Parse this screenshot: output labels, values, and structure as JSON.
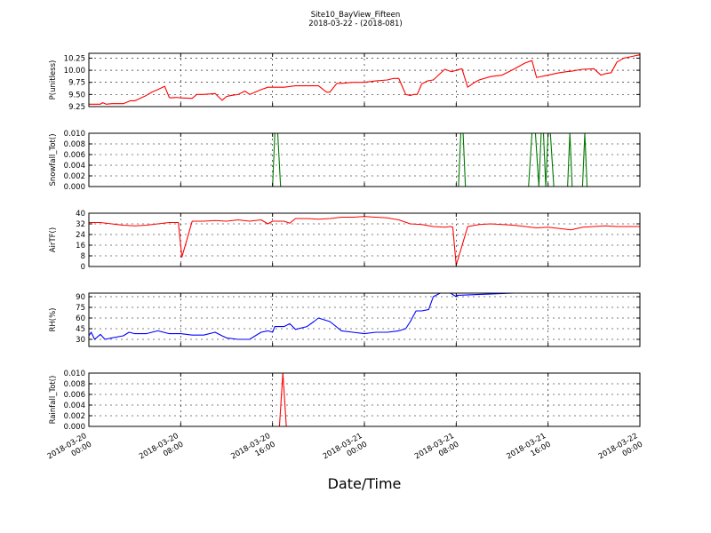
{
  "figure": {
    "title_lines": [
      "Site10_BayView_Fifteen",
      "2018-03-22 - (2018-081)"
    ],
    "xlabel": "Date/Time",
    "x_ticks": [
      {
        "t": 0,
        "line1": "2018-03-20",
        "line2": "00:00"
      },
      {
        "t": 8,
        "line1": "2018-03-20",
        "line2": "08:00"
      },
      {
        "t": 16,
        "line1": "2018-03-20",
        "line2": "16:00"
      },
      {
        "t": 24,
        "line1": "2018-03-21",
        "line2": "00:00"
      },
      {
        "t": 32,
        "line1": "2018-03-21",
        "line2": "08:00"
      },
      {
        "t": 40,
        "line1": "2018-03-21",
        "line2": "16:00"
      },
      {
        "t": 48,
        "line1": "2018-03-22",
        "line2": "00:00"
      }
    ]
  },
  "chart_data": [
    {
      "type": "line",
      "ylabel": "P(unitless)",
      "ylim": [
        9.25,
        10.35
      ],
      "yticks": [
        9.25,
        9.5,
        9.75,
        10.0,
        10.25
      ],
      "ytick_labels": [
        "9.25",
        "9.50",
        "9.75",
        "10.00",
        "10.25"
      ],
      "grid": true,
      "color": "#ff0000",
      "x_hours": [
        0,
        1,
        1.2,
        1.5,
        2,
        3,
        3.6,
        4,
        5,
        5.5,
        6,
        6.6,
        7,
        7.1,
        7.6,
        8,
        9,
        9.4,
        9.8,
        10,
        11,
        11.6,
        12,
        12.4,
        13,
        13.6,
        14,
        15,
        15.6,
        16,
        17,
        18,
        19,
        20,
        20.7,
        21,
        21.6,
        22,
        23,
        24,
        25,
        26,
        26.5,
        27,
        27.6,
        28,
        28.3,
        28.6,
        29,
        29.5,
        30,
        31,
        31.6,
        32,
        32.5,
        33,
        33.6,
        34,
        35,
        36,
        37,
        38,
        38.6,
        39,
        40,
        41,
        41.6,
        42,
        43,
        44,
        44.6,
        45,
        45.5,
        46,
        46.6,
        47,
        47.6,
        48
      ],
      "y": [
        9.3,
        9.3,
        9.33,
        9.3,
        9.31,
        9.31,
        9.37,
        9.37,
        9.48,
        9.55,
        9.6,
        9.67,
        9.44,
        9.43,
        9.44,
        9.43,
        9.42,
        9.5,
        9.5,
        9.5,
        9.52,
        9.38,
        9.46,
        9.48,
        9.5,
        9.57,
        9.5,
        9.6,
        9.65,
        9.65,
        9.65,
        9.68,
        9.68,
        9.68,
        9.55,
        9.55,
        9.73,
        9.73,
        9.75,
        9.75,
        9.78,
        9.8,
        9.83,
        9.83,
        9.5,
        9.48,
        9.5,
        9.5,
        9.72,
        9.78,
        9.8,
        10.02,
        9.97,
        10.0,
        10.03,
        9.65,
        9.75,
        9.8,
        9.87,
        9.9,
        10.02,
        10.15,
        10.2,
        9.85,
        9.9,
        9.95,
        9.97,
        9.98,
        10.02,
        10.03,
        9.9,
        9.93,
        9.95,
        10.17,
        10.25,
        10.27,
        10.3,
        10.32
      ]
    },
    {
      "type": "line",
      "ylabel": "Snowfall_Tot()",
      "ylim": [
        0.0,
        0.01
      ],
      "yticks": [
        0.0,
        0.002,
        0.004,
        0.006,
        0.008,
        0.01
      ],
      "ytick_labels": [
        "0.000",
        "0.002",
        "0.004",
        "0.006",
        "0.008",
        "0.010"
      ],
      "grid": true,
      "color": "#007700",
      "x_hours": [
        0,
        16.0,
        16.2,
        16.45,
        16.7,
        32.2,
        32.4,
        32.6,
        32.8,
        38.3,
        38.6,
        38.9,
        39.2,
        39.4,
        39.6,
        39.8,
        40.0,
        40.2,
        40.5,
        41.7,
        41.9,
        42.1,
        43.0,
        43.2,
        43.4,
        48
      ],
      "y": [
        0,
        0,
        0.01,
        0.01,
        0,
        0,
        0.01,
        0.01,
        0,
        0,
        0.01,
        0.01,
        0,
        0.01,
        0.01,
        0,
        0.01,
        0.01,
        0,
        0,
        0.01,
        0,
        0,
        0.01,
        0,
        0
      ]
    },
    {
      "type": "line",
      "ylabel": "AirTF()",
      "ylim": [
        0,
        40
      ],
      "yticks": [
        0,
        8,
        16,
        24,
        32,
        40
      ],
      "ytick_labels": [
        "0",
        "8",
        "16",
        "24",
        "32",
        "40"
      ],
      "grid": true,
      "color": "#ff0000",
      "x_hours": [
        0,
        1,
        2,
        3,
        4,
        5,
        6,
        7,
        7.6,
        7.8,
        8.1,
        9,
        10,
        11,
        12,
        13,
        14,
        15,
        15.6,
        16,
        17,
        17.5,
        18,
        19,
        20,
        21,
        22,
        23,
        24,
        25,
        26,
        27,
        28,
        29,
        30,
        31,
        31.5,
        31.7,
        32.0,
        33,
        34,
        35,
        36,
        37,
        38,
        39,
        40,
        41,
        41.5,
        42,
        43,
        44,
        45,
        46,
        47,
        48
      ],
      "y": [
        33,
        33,
        32,
        31,
        30.5,
        31,
        32,
        33,
        33,
        33,
        7,
        34,
        34,
        34.5,
        34,
        35,
        34,
        35,
        32,
        34,
        34,
        32.5,
        36,
        36,
        35.5,
        36,
        37,
        37,
        37.5,
        37,
        36.5,
        35,
        32,
        31.5,
        30,
        29.5,
        30,
        29.5,
        1,
        30,
        31.5,
        32,
        31.5,
        31,
        30,
        29,
        29.5,
        28.5,
        28,
        27.5,
        29.5,
        30,
        30.5,
        30,
        30,
        30
      ]
    },
    {
      "type": "line",
      "ylabel": "RH(%)",
      "ylim": [
        20,
        95
      ],
      "yticks": [
        30,
        45,
        60,
        75,
        90
      ],
      "ytick_labels": [
        "30",
        "45",
        "60",
        "75",
        "90"
      ],
      "grid": true,
      "color": "#0000ff",
      "x_hours": [
        0,
        0.2,
        0.5,
        1,
        1.4,
        2,
        3,
        3.5,
        4,
        5,
        6,
        7,
        8,
        9,
        10,
        11,
        11.6,
        12,
        13,
        14,
        15,
        15.6,
        16,
        16.2,
        17,
        17.5,
        18,
        19,
        19.6,
        20,
        21,
        22,
        23,
        24,
        25,
        26,
        27,
        27.6,
        28,
        28.5,
        29,
        29.6,
        30,
        30.6,
        31,
        31.2,
        31.5,
        32,
        32.1,
        38.5,
        39,
        40,
        41,
        41.5
      ],
      "y": [
        35,
        40,
        30,
        37,
        30,
        32,
        35,
        40,
        38,
        38,
        42,
        38,
        38,
        36,
        36,
        40,
        35,
        32,
        30,
        30,
        40,
        42,
        40,
        48,
        48,
        52,
        44,
        48,
        55,
        60,
        55,
        42,
        40,
        38,
        40,
        40,
        42,
        45,
        55,
        70,
        70,
        72,
        90,
        95,
        95,
        95,
        95,
        90,
        92,
        96,
        95,
        95,
        95,
        96
      ]
    },
    {
      "type": "line",
      "ylabel": "Rainfall_Tot()",
      "ylim": [
        0.0,
        0.01
      ],
      "yticks": [
        0.0,
        0.002,
        0.004,
        0.006,
        0.008,
        0.01
      ],
      "ytick_labels": [
        "0.000",
        "0.002",
        "0.004",
        "0.006",
        "0.008",
        "0.010"
      ],
      "grid": true,
      "color": "#ff0000",
      "x_hours": [
        0,
        16.6,
        16.9,
        17.2,
        48
      ],
      "y": [
        0,
        0,
        0.01,
        0,
        0
      ]
    }
  ]
}
